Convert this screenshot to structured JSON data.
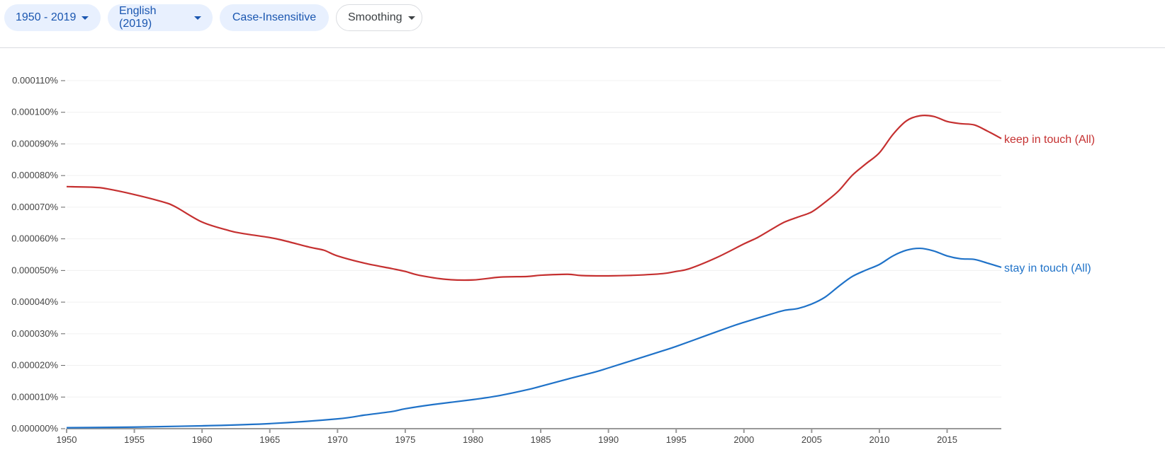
{
  "controls": {
    "year_range": "1950 - 2019",
    "corpus": "English (2019)",
    "case": "Case-Insensitive",
    "smoothing": "Smoothing"
  },
  "chart_data": {
    "type": "line",
    "title": "",
    "xlabel": "",
    "ylabel": "",
    "xlim": [
      1950,
      2019
    ],
    "ylim": [
      0,
      0.00011
    ],
    "grid": true,
    "x_ticks": [
      "1950",
      "1955",
      "1960",
      "1965",
      "1970",
      "1975",
      "1980",
      "1985",
      "1990",
      "1995",
      "2000",
      "2005",
      "2010",
      "2015"
    ],
    "y_ticks": [
      "0.000000%",
      "0.000010%",
      "0.000020%",
      "0.000030%",
      "0.000040%",
      "0.000050%",
      "0.000060%",
      "0.000070%",
      "0.000080%",
      "0.000090%",
      "0.000100%",
      "0.000110%"
    ],
    "series": [
      {
        "name": "keep in touch (All)",
        "color": "#c53030",
        "x": [
          1950,
          1952,
          1953,
          1955,
          1957,
          1958,
          1960,
          1962,
          1963,
          1965,
          1966,
          1968,
          1969,
          1970,
          1972,
          1974,
          1975,
          1976,
          1978,
          1980,
          1982,
          1984,
          1985,
          1987,
          1988,
          1990,
          1992,
          1994,
          1995,
          1996,
          1998,
          2000,
          2001,
          2002,
          2003,
          2004,
          2005,
          2006,
          2007,
          2008,
          2009,
          2010,
          2011,
          2012,
          2013,
          2014,
          2015,
          2016,
          2017,
          2018,
          2019
        ],
        "values": [
          7.65e-05,
          7.63e-05,
          7.58e-05,
          7.4e-05,
          7.18e-05,
          7.02e-05,
          6.53e-05,
          6.26e-05,
          6.17e-05,
          6.04e-05,
          5.95e-05,
          5.73e-05,
          5.64e-05,
          5.46e-05,
          5.23e-05,
          5.06e-05,
          4.97e-05,
          4.85e-05,
          4.72e-05,
          4.7e-05,
          4.79e-05,
          4.81e-05,
          4.85e-05,
          4.88e-05,
          4.84e-05,
          4.83e-05,
          4.85e-05,
          4.9e-05,
          4.97e-05,
          5.06e-05,
          5.41e-05,
          5.84e-05,
          6.04e-05,
          6.29e-05,
          6.53e-05,
          6.69e-05,
          6.85e-05,
          7.16e-05,
          7.52e-05,
          8.01e-05,
          8.37e-05,
          8.72e-05,
          9.3e-05,
          9.73e-05,
          9.89e-05,
          9.87e-05,
          9.71e-05,
          9.64e-05,
          9.6e-05,
          9.4e-05,
          9.17e-05
        ]
      },
      {
        "name": "stay in touch (All)",
        "color": "#1f72c8",
        "x": [
          1950,
          1955,
          1960,
          1965,
          1970,
          1972,
          1974,
          1975,
          1977,
          1980,
          1982,
          1984,
          1985,
          1987,
          1989,
          1990,
          1992,
          1994,
          1995,
          1997,
          1999,
          2000,
          2002,
          2003,
          2004,
          2005,
          2006,
          2007,
          2008,
          2009,
          2010,
          2011,
          2012,
          2013,
          2014,
          2015,
          2016,
          2017,
          2018,
          2019
        ],
        "values": [
          3e-07,
          5e-07,
          9e-07,
          1.6e-06,
          3.1e-06,
          4.3e-06,
          5.4e-06,
          6.3e-06,
          7.6e-06,
          9.2e-06,
          1.05e-05,
          1.23e-05,
          1.34e-05,
          1.57e-05,
          1.79e-05,
          1.92e-05,
          2.19e-05,
          2.46e-05,
          2.6e-05,
          2.91e-05,
          3.22e-05,
          3.36e-05,
          3.62e-05,
          3.74e-05,
          3.8e-05,
          3.94e-05,
          4.16e-05,
          4.5e-05,
          4.81e-05,
          5.01e-05,
          5.19e-05,
          5.46e-05,
          5.64e-05,
          5.7e-05,
          5.62e-05,
          5.46e-05,
          5.37e-05,
          5.35e-05,
          5.23e-05,
          5.1e-05
        ]
      }
    ]
  }
}
